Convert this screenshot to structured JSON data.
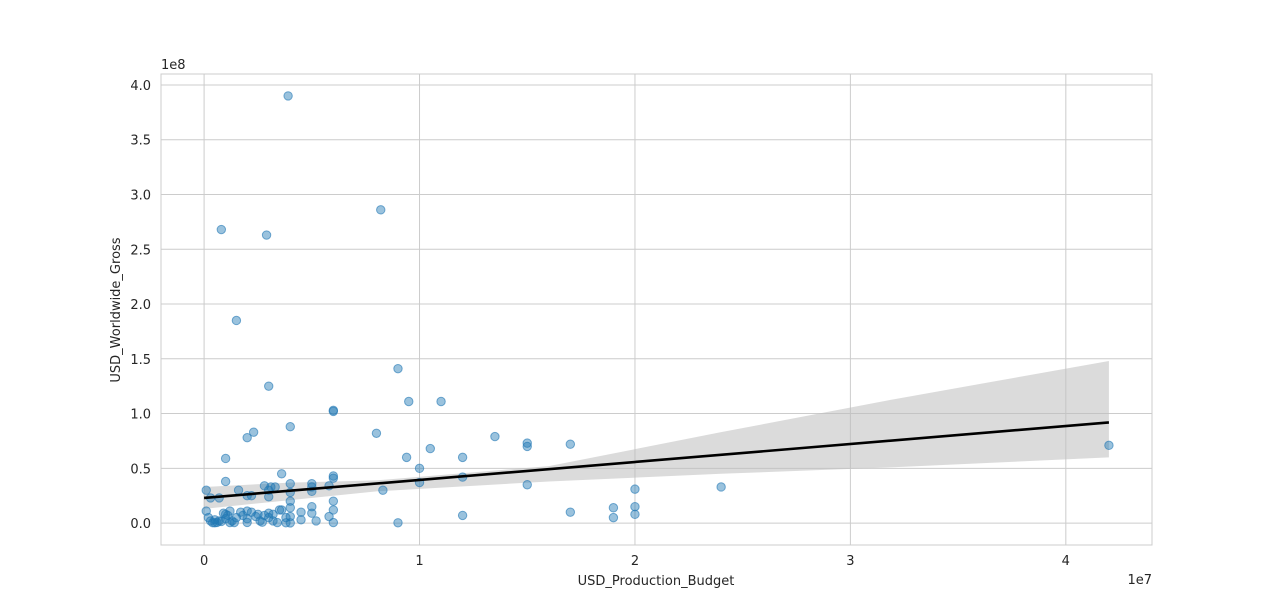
{
  "chart_data": {
    "type": "scatter",
    "title": "",
    "xlabel": "USD_Production_Budget",
    "ylabel": "USD_Worldwide_Gross",
    "x_offset_label": "1e7",
    "y_offset_label": "1e8",
    "xlim": [
      -2000000,
      44000000
    ],
    "ylim": [
      -20000000,
      410000000
    ],
    "xticks": [
      0,
      10000000,
      20000000,
      30000000,
      40000000
    ],
    "xtick_labels": [
      "0",
      "1",
      "2",
      "3",
      "4"
    ],
    "yticks": [
      0,
      50000000,
      100000000,
      150000000,
      200000000,
      250000000,
      300000000,
      350000000,
      400000000
    ],
    "ytick_labels": [
      "0.0",
      "0.5",
      "1.0",
      "1.5",
      "2.0",
      "2.5",
      "3.0",
      "3.5",
      "4.0"
    ],
    "grid": true,
    "colors": {
      "points": "#1f77b4",
      "fit_line": "#000000",
      "confidence_band": "#bdbdbd",
      "grid": "#cccccc",
      "axes": "#cccccc"
    },
    "series": [
      {
        "values": [
          [
            3900000,
            390000000
          ],
          [
            8200000,
            286000000
          ],
          [
            800000,
            268000000
          ],
          [
            2900000,
            263000000
          ],
          [
            1500000,
            185000000
          ],
          [
            3000000,
            125000000
          ],
          [
            9000000,
            141000000
          ],
          [
            9500000,
            111000000
          ],
          [
            11000000,
            111000000
          ],
          [
            6000000,
            102000000
          ],
          [
            6000000,
            103000000
          ],
          [
            4000000,
            88000000
          ],
          [
            2300000,
            83000000
          ],
          [
            2000000,
            78000000
          ],
          [
            8000000,
            82000000
          ],
          [
            13500000,
            79000000
          ],
          [
            15000000,
            73000000
          ],
          [
            15000000,
            70000000
          ],
          [
            17000000,
            72000000
          ],
          [
            42000000,
            71000000
          ],
          [
            10500000,
            68000000
          ],
          [
            1000000,
            59000000
          ],
          [
            9400000,
            60000000
          ],
          [
            12000000,
            60000000
          ],
          [
            10000000,
            50000000
          ],
          [
            3600000,
            45000000
          ],
          [
            6000000,
            43000000
          ],
          [
            6000000,
            41000000
          ],
          [
            12000000,
            42000000
          ],
          [
            1000000,
            38000000
          ],
          [
            10000000,
            37000000
          ],
          [
            15000000,
            35000000
          ],
          [
            24000000,
            33000000
          ],
          [
            20000000,
            31000000
          ],
          [
            8300000,
            30000000
          ],
          [
            100000,
            30000000
          ],
          [
            2800000,
            34000000
          ],
          [
            3100000,
            33000000
          ],
          [
            3300000,
            33000000
          ],
          [
            4000000,
            36000000
          ],
          [
            5000000,
            36000000
          ],
          [
            5000000,
            33000000
          ],
          [
            5800000,
            34000000
          ],
          [
            4000000,
            28000000
          ],
          [
            5000000,
            29000000
          ],
          [
            1600000,
            30000000
          ],
          [
            3000000,
            30000000
          ],
          [
            2000000,
            25000000
          ],
          [
            2200000,
            25000000
          ],
          [
            3000000,
            24000000
          ],
          [
            300000,
            23000000
          ],
          [
            700000,
            23000000
          ],
          [
            4000000,
            20000000
          ],
          [
            6000000,
            20000000
          ],
          [
            19000000,
            14000000
          ],
          [
            20000000,
            15000000
          ],
          [
            5000000,
            15000000
          ],
          [
            4000000,
            14000000
          ],
          [
            3500000,
            12000000
          ],
          [
            3600000,
            12000000
          ],
          [
            6000000,
            12000000
          ],
          [
            1700000,
            10000000
          ],
          [
            17000000,
            10000000
          ],
          [
            20000000,
            8000000
          ],
          [
            12000000,
            7000000
          ],
          [
            19000000,
            5000000
          ],
          [
            2200000,
            10000000
          ],
          [
            2000000,
            11000000
          ],
          [
            3000000,
            9000000
          ],
          [
            4500000,
            10000000
          ],
          [
            5000000,
            9000000
          ],
          [
            1200000,
            11000000
          ],
          [
            2500000,
            8000000
          ],
          [
            3200000,
            8000000
          ],
          [
            1000000,
            8000000
          ],
          [
            5800000,
            6000000
          ],
          [
            100000,
            11000000
          ],
          [
            200000,
            5000000
          ],
          [
            500000,
            3000000
          ],
          [
            700000,
            2000000
          ],
          [
            900000,
            9000000
          ],
          [
            1100000,
            7000000
          ],
          [
            1300000,
            2000000
          ],
          [
            1500000,
            5000000
          ],
          [
            1800000,
            7000000
          ],
          [
            2000000,
            4000000
          ],
          [
            2400000,
            6000000
          ],
          [
            2600000,
            2000000
          ],
          [
            2800000,
            7000000
          ],
          [
            3000000,
            5000000
          ],
          [
            3200000,
            2000000
          ],
          [
            3800000,
            5000000
          ],
          [
            4000000,
            6000000
          ],
          [
            4500000,
            3000000
          ],
          [
            5200000,
            2000000
          ],
          [
            6000000,
            500000
          ],
          [
            9000000,
            300000
          ],
          [
            3400000,
            500000
          ],
          [
            3800000,
            300000
          ],
          [
            4000000,
            200000
          ],
          [
            2000000,
            600000
          ],
          [
            1200000,
            500000
          ],
          [
            400000,
            400000
          ],
          [
            600000,
            600000
          ],
          [
            800000,
            1500000
          ],
          [
            1000000,
            4000000
          ],
          [
            1400000,
            500000
          ],
          [
            2700000,
            800000
          ],
          [
            300000,
            2000000
          ],
          [
            500000,
            300000
          ]
        ]
      }
    ],
    "regression": {
      "intercept": 23000000,
      "slope": 1.64,
      "x_range": [
        0,
        42000000
      ],
      "ci": [
        [
          0,
          13000000,
          33000000
        ],
        [
          4000000,
          21000000,
          37000000
        ],
        [
          8000000,
          29000000,
          39000000
        ],
        [
          16000000,
          38000000,
          52000000
        ],
        [
          24000000,
          45000000,
          83000000
        ],
        [
          32000000,
          51000000,
          113000000
        ],
        [
          42000000,
          60000000,
          148000000
        ]
      ]
    }
  }
}
